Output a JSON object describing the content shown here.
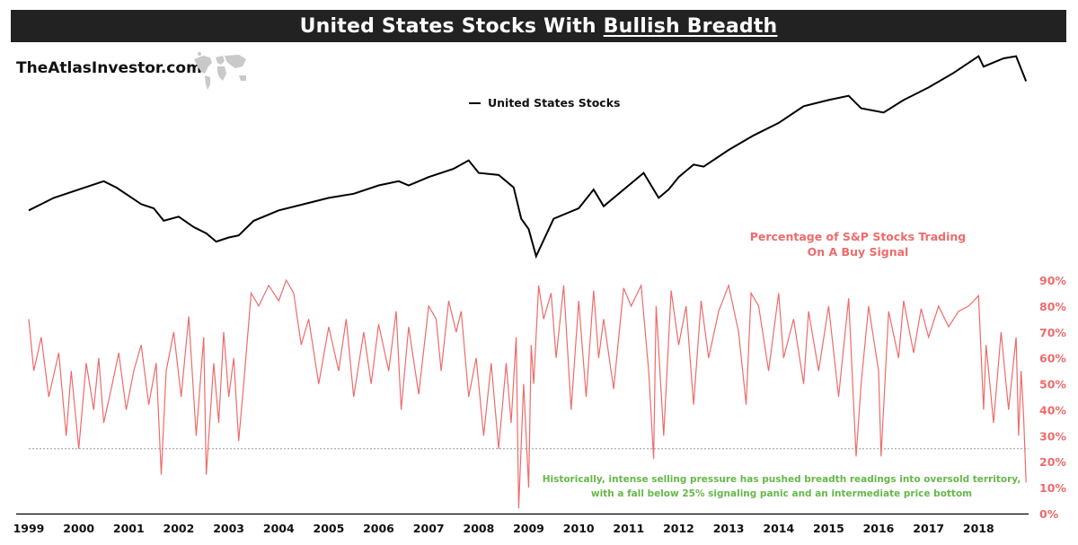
{
  "header": {
    "title_prefix": "United States Stocks With ",
    "title_emphasis": "Bullish Breadth"
  },
  "brand": {
    "name": "TheAtlasInvestor.com",
    "logo_icon": "world-map-icon"
  },
  "colors": {
    "price_line": "#000000",
    "breadth_line": "#ee6b6b",
    "annotation": "#66b84a",
    "title_bar": "#222222"
  },
  "chart_data": [
    {
      "type": "line",
      "legend": {
        "label": "United States Stocks",
        "placement": "top-center"
      },
      "grid": false,
      "x": [
        1999.0,
        1999.5,
        2000.0,
        2000.5,
        2000.75,
        2001.0,
        2001.25,
        2001.5,
        2001.7,
        2002.0,
        2002.3,
        2002.55,
        2002.75,
        2003.0,
        2003.2,
        2003.5,
        2004.0,
        2004.5,
        2005.0,
        2005.5,
        2006.0,
        2006.4,
        2006.6,
        2007.0,
        2007.5,
        2007.8,
        2008.0,
        2008.4,
        2008.7,
        2008.85,
        2009.0,
        2009.15,
        2009.5,
        2010.0,
        2010.3,
        2010.5,
        2011.0,
        2011.3,
        2011.6,
        2011.8,
        2012.0,
        2012.3,
        2012.5,
        2013.0,
        2013.5,
        2014.0,
        2014.5,
        2015.0,
        2015.4,
        2015.65,
        2016.1,
        2016.5,
        2017.0,
        2017.5,
        2018.0,
        2018.1,
        2018.5,
        2018.75,
        2018.95
      ],
      "y": [
        0.24,
        0.3,
        0.34,
        0.38,
        0.35,
        0.31,
        0.27,
        0.25,
        0.19,
        0.21,
        0.16,
        0.13,
        0.09,
        0.11,
        0.12,
        0.19,
        0.24,
        0.27,
        0.3,
        0.32,
        0.36,
        0.38,
        0.36,
        0.4,
        0.44,
        0.48,
        0.42,
        0.41,
        0.35,
        0.2,
        0.15,
        0.02,
        0.2,
        0.25,
        0.34,
        0.26,
        0.36,
        0.42,
        0.3,
        0.34,
        0.4,
        0.46,
        0.45,
        0.53,
        0.6,
        0.66,
        0.74,
        0.77,
        0.79,
        0.73,
        0.71,
        0.77,
        0.83,
        0.9,
        0.98,
        0.93,
        0.97,
        0.98,
        0.86
      ]
    },
    {
      "type": "line",
      "legend": {
        "label": "Percentage of S&P Stocks Trading On A Buy Signal",
        "placement": "right"
      },
      "grid": false,
      "ylim": [
        0,
        90
      ],
      "yticks": [
        "0%",
        "10%",
        "20%",
        "30%",
        "40%",
        "50%",
        "60%",
        "70%",
        "80%",
        "90%"
      ],
      "xticks": [
        "1999",
        "2000",
        "2001",
        "2002",
        "2003",
        "2004",
        "2005",
        "2006",
        "2007",
        "2008",
        "2009",
        "2010",
        "2011",
        "2012",
        "2013",
        "2014",
        "2015",
        "2016",
        "2017",
        "2018"
      ],
      "xlim": [
        1999.0,
        2019.0
      ],
      "threshold": 25,
      "x": [
        1999.0,
        1999.1,
        1999.25,
        1999.4,
        1999.6,
        1999.75,
        1999.85,
        2000.0,
        2000.15,
        2000.3,
        2000.4,
        2000.5,
        2000.65,
        2000.8,
        2000.95,
        2001.1,
        2001.25,
        2001.4,
        2001.55,
        2001.65,
        2001.75,
        2001.9,
        2002.05,
        2002.2,
        2002.35,
        2002.5,
        2002.55,
        2002.7,
        2002.8,
        2002.9,
        2003.0,
        2003.1,
        2003.2,
        2003.3,
        2003.45,
        2003.6,
        2003.8,
        2004.0,
        2004.15,
        2004.3,
        2004.45,
        2004.6,
        2004.8,
        2005.0,
        2005.2,
        2005.35,
        2005.5,
        2005.7,
        2005.85,
        2006.0,
        2006.2,
        2006.35,
        2006.45,
        2006.6,
        2006.8,
        2007.0,
        2007.15,
        2007.25,
        2007.4,
        2007.55,
        2007.65,
        2007.8,
        2007.95,
        2008.1,
        2008.25,
        2008.4,
        2008.55,
        2008.65,
        2008.75,
        2008.8,
        2008.9,
        2009.0,
        2009.05,
        2009.1,
        2009.2,
        2009.3,
        2009.45,
        2009.55,
        2009.7,
        2009.85,
        2010.0,
        2010.15,
        2010.3,
        2010.4,
        2010.5,
        2010.7,
        2010.9,
        2011.05,
        2011.25,
        2011.4,
        2011.5,
        2011.55,
        2011.7,
        2011.85,
        2012.0,
        2012.15,
        2012.3,
        2012.45,
        2012.6,
        2012.8,
        2013.0,
        2013.2,
        2013.35,
        2013.45,
        2013.6,
        2013.8,
        2014.0,
        2014.1,
        2014.3,
        2014.5,
        2014.6,
        2014.8,
        2015.0,
        2015.2,
        2015.4,
        2015.55,
        2015.65,
        2015.8,
        2016.0,
        2016.05,
        2016.2,
        2016.4,
        2016.5,
        2016.7,
        2016.85,
        2017.0,
        2017.2,
        2017.4,
        2017.6,
        2017.8,
        2018.0,
        2018.1,
        2018.15,
        2018.3,
        2018.45,
        2018.6,
        2018.75,
        2018.8,
        2018.85,
        2018.9,
        2018.95
      ],
      "y": [
        75,
        55,
        68,
        45,
        62,
        30,
        55,
        25,
        58,
        40,
        60,
        35,
        48,
        62,
        40,
        55,
        65,
        42,
        58,
        15,
        55,
        70,
        45,
        76,
        30,
        68,
        15,
        58,
        35,
        70,
        45,
        60,
        28,
        50,
        85,
        80,
        88,
        82,
        90,
        85,
        65,
        75,
        50,
        72,
        55,
        75,
        45,
        70,
        50,
        73,
        55,
        78,
        40,
        72,
        46,
        80,
        75,
        55,
        82,
        70,
        78,
        45,
        60,
        30,
        58,
        25,
        58,
        35,
        68,
        2,
        50,
        10,
        65,
        50,
        88,
        75,
        85,
        60,
        88,
        40,
        82,
        45,
        86,
        60,
        75,
        48,
        87,
        80,
        88,
        55,
        21,
        80,
        30,
        86,
        65,
        80,
        42,
        82,
        60,
        78,
        88,
        70,
        42,
        85,
        80,
        55,
        85,
        60,
        75,
        50,
        78,
        55,
        80,
        45,
        83,
        22,
        50,
        80,
        55,
        22,
        78,
        60,
        82,
        62,
        79,
        68,
        80,
        72,
        78,
        80,
        84,
        40,
        65,
        35,
        70,
        40,
        68,
        30,
        55,
        38,
        12
      ],
      "annotation": "Historically, intense selling pressure has pushed breadth readings into oversold territory, with a fall below 25% signaling panic and an intermediate price bottom"
    }
  ]
}
